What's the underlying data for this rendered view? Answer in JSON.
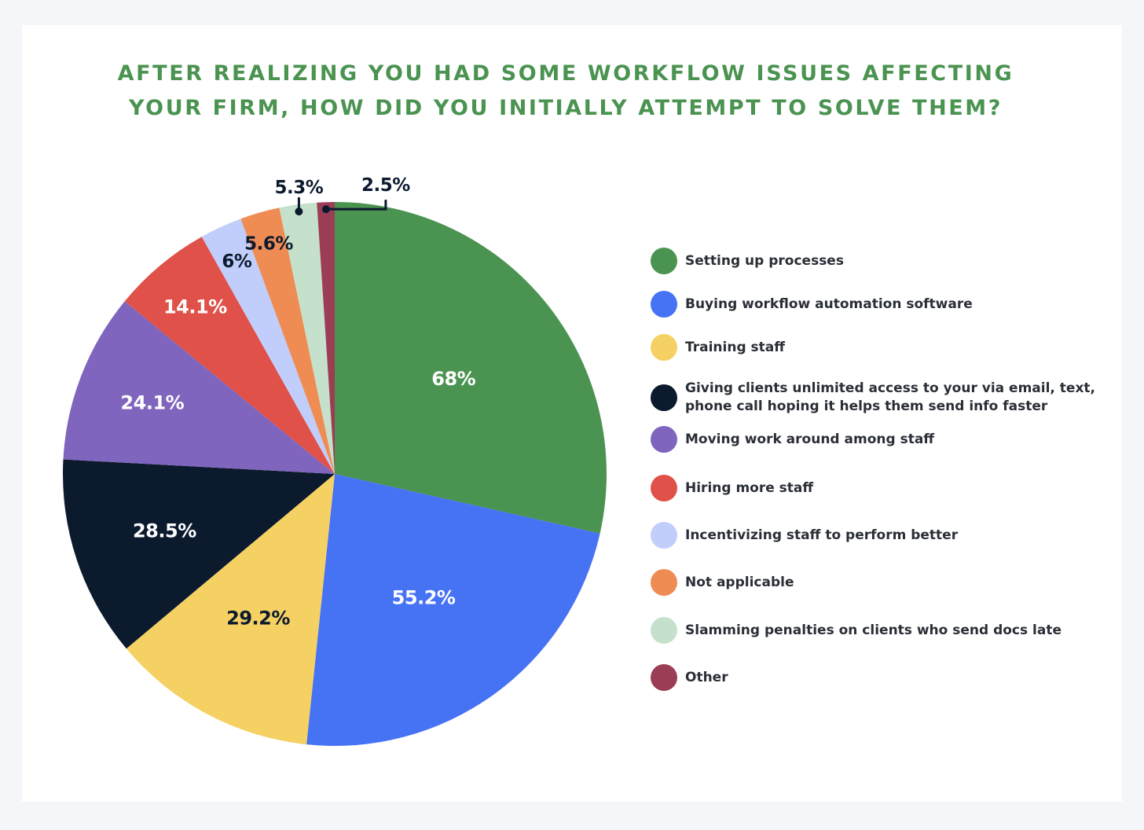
{
  "title_lines": [
    "AFTER REALIZING YOU HAD SOME WORKFLOW ISSUES AFFECTING",
    "YOUR FIRM, HOW DID YOU INITIALLY ATTEMPT TO SOLVE THEM?"
  ],
  "chart_data": {
    "type": "pie",
    "title": "AFTER REALIZING YOU HAD SOME WORKFLOW ISSUES AFFECTING YOUR FIRM, HOW DID YOU INITIALLY ATTEMPT TO SOLVE THEM?",
    "legend_position": "right",
    "slices": [
      {
        "label": "Setting up processes",
        "value": 68,
        "display": "68%",
        "color": "#4a9350",
        "text_color": "#ffffff"
      },
      {
        "label": "Buying workflow automation software",
        "value": 55.2,
        "display": "55.2%",
        "color": "#4672f4",
        "text_color": "#ffffff"
      },
      {
        "label": "Training staff",
        "value": 29.2,
        "display": "29.2%",
        "color": "#f5d163",
        "text_color": "#0c1a2e"
      },
      {
        "label": "Giving clients unlimited access to your via email, text, phone call hoping it helps them send info faster",
        "value": 28.5,
        "display": "28.5%",
        "color": "#0c1a2e",
        "text_color": "#ffffff"
      },
      {
        "label": "Moving work around among staff",
        "value": 24.1,
        "display": "24.1%",
        "color": "#7f65bd",
        "text_color": "#ffffff"
      },
      {
        "label": "Hiring more staff",
        "value": 14.1,
        "display": "14.1%",
        "color": "#df5149",
        "text_color": "#ffffff"
      },
      {
        "label": "Incentivizing staff to perform better",
        "value": 6,
        "display": "6%",
        "color": "#c1cdfa",
        "text_color": "#0c1a2e"
      },
      {
        "label": "Not applicable",
        "value": 5.6,
        "display": "5.6%",
        "color": "#ee8c54",
        "text_color": "#0c1a2e"
      },
      {
        "label": "Slamming penalties on clients who send docs late",
        "value": 5.3,
        "display": "5.3%",
        "color": "#c5e1cb",
        "text_color": "#0c1a2e"
      },
      {
        "label": "Other",
        "value": 2.5,
        "display": "2.5%",
        "color": "#9b3d55",
        "text_color": "#0c1a2e"
      }
    ]
  }
}
